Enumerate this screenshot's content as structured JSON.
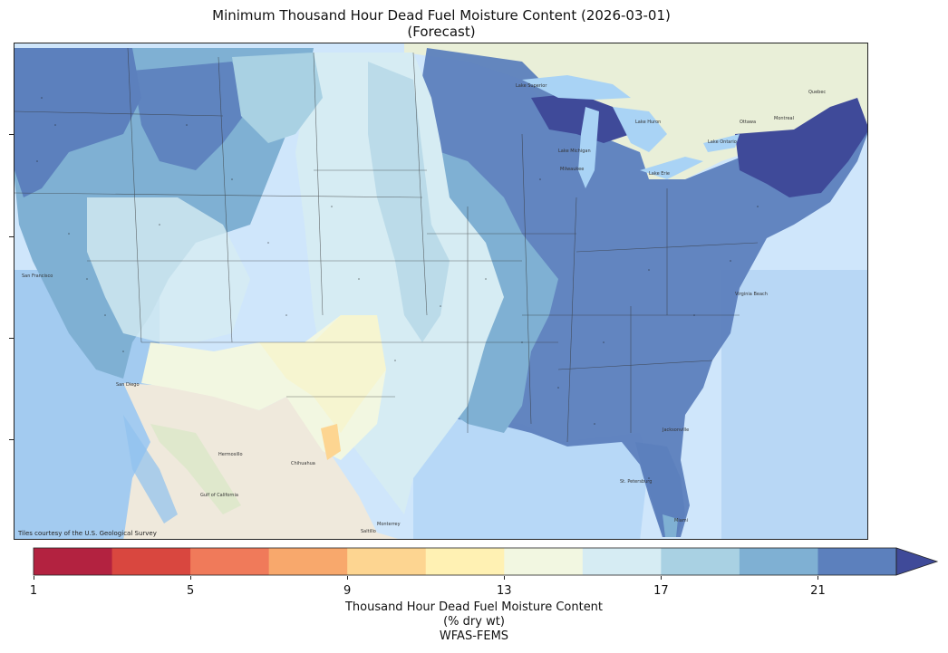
{
  "title": {
    "line1": "Minimum Thousand Hour Dead Fuel Moisture Content (2026-03-01)",
    "line2": "(Forecast)"
  },
  "map": {
    "attribution": "Tiles courtesy of the U.S. Geological Survey",
    "basemap_colors": {
      "ocean": "#cfe6fb",
      "land": "#f2efe4",
      "lake": "#a9d3f5"
    },
    "place_labels": [
      "San Francisco",
      "San Diego",
      "Hermosillo",
      "Chihuahua",
      "Monterrey",
      "Saltillo",
      "Gulf of California",
      "Milwaukee",
      "Jacksonville",
      "Virginia Beach",
      "St. Petersburg",
      "Miami",
      "Ottawa",
      "Montreal",
      "Quebec",
      "Lake Superior",
      "Lake Michigan",
      "Lake Huron",
      "Lake Ontario",
      "Lake Erie"
    ],
    "regions": [
      {
        "name": "Pacific Northwest",
        "value_class": "21-23"
      },
      {
        "name": "California coast",
        "value_class": "19-21"
      },
      {
        "name": "Great Basin",
        "value_class": "15-17"
      },
      {
        "name": "Northern Rockies / Idaho",
        "value_class": "19-21"
      },
      {
        "name": "Northern Plains",
        "value_class": "15-17"
      },
      {
        "name": "Southwest desert",
        "value_class": "13-15"
      },
      {
        "name": "West Texas / New Mexico",
        "value_class": "13-15"
      },
      {
        "name": "Texas Panhandle spot",
        "value_class": "11-13"
      },
      {
        "name": "Mississippi valley",
        "value_class": "17-19"
      },
      {
        "name": "Southeast",
        "value_class": "21-23"
      },
      {
        "name": "Upper Midwest",
        "value_class": "19-21"
      },
      {
        "name": "Michigan Upper Peninsula",
        "value_class": ">23"
      },
      {
        "name": "New England",
        "value_class": ">23"
      }
    ]
  },
  "colorbar": {
    "label_line1": "Thousand Hour Dead Fuel Moisture Content",
    "label_line2": "(% dry wt)",
    "label_line3": "WFAS-FEMS",
    "ticks": [
      "1",
      "5",
      "9",
      "13",
      "17",
      "21"
    ],
    "tick_values": [
      1,
      5,
      9,
      13,
      17,
      21
    ],
    "min": 1,
    "max": 23,
    "extend": "max",
    "colors": [
      "#b32240",
      "#d9473f",
      "#f07a5a",
      "#f8a86c",
      "#fdd591",
      "#fff1b3",
      "#f2f7e1",
      "#d6ecf3",
      "#a9d1e3",
      "#7fb0d3",
      "#5c80bd",
      "#3f4a99"
    ]
  }
}
